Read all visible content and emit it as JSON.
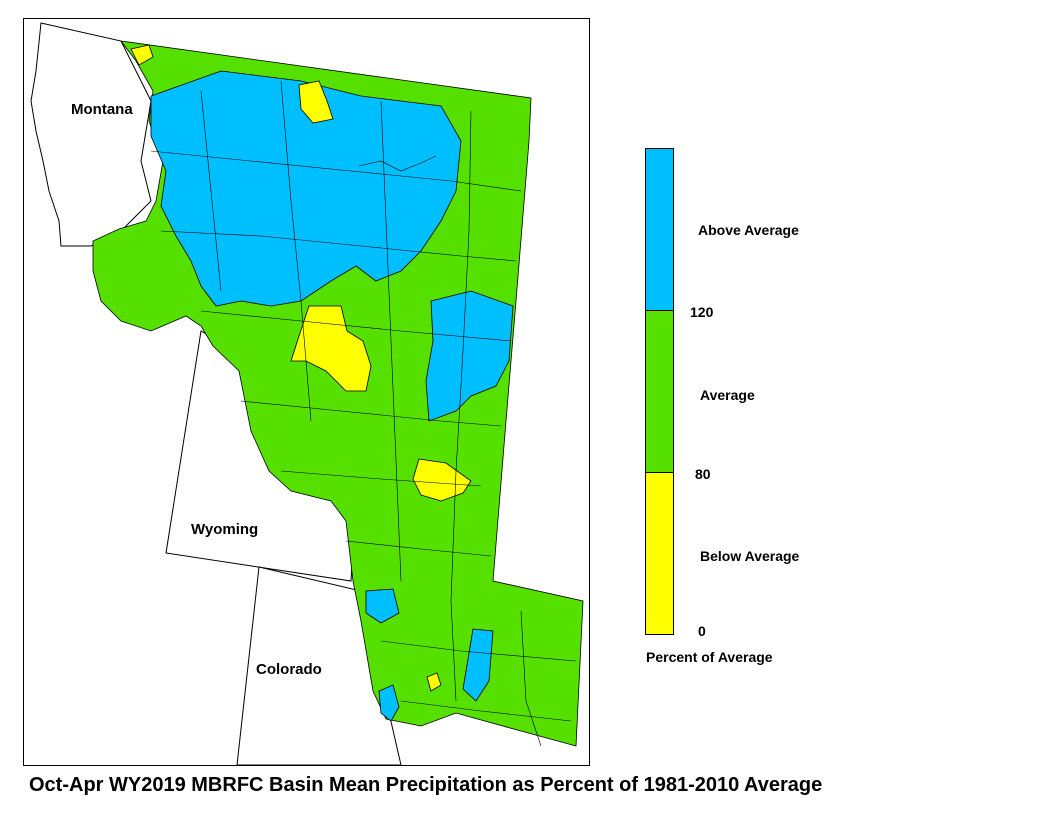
{
  "map": {
    "states": {
      "montana": "Montana",
      "wyoming": "Wyoming",
      "colorado": "Colorado"
    },
    "colors": {
      "above": "#00bfff",
      "average": "#55e000",
      "below": "#ffff00",
      "boundary": "#000000"
    }
  },
  "legend": {
    "categories": [
      {
        "label": "Above Average",
        "color": "#00bfff"
      },
      {
        "label": "Average",
        "color": "#55e000"
      },
      {
        "label": "Below Average",
        "color": "#ffff00"
      }
    ],
    "breaks": [
      "120",
      "80",
      "0"
    ],
    "title": "Percent of Average"
  },
  "caption": "Oct-Apr WY2019 MBRFC Basin Mean Precipitation as Percent of 1981-2010 Average"
}
